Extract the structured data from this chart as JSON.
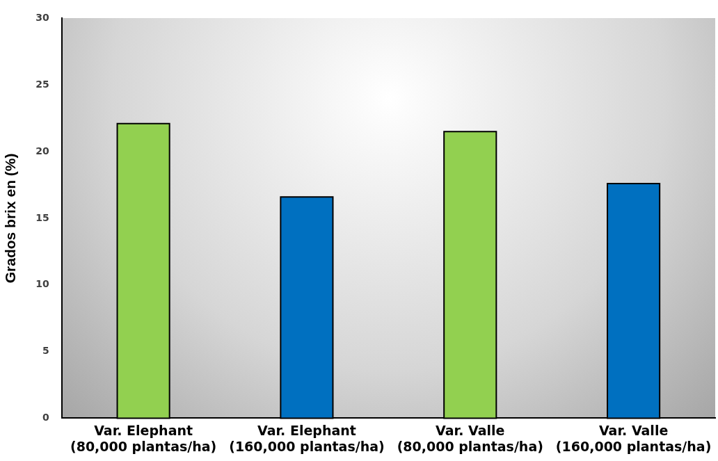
{
  "chart_data": {
    "type": "bar",
    "ylabel": "Grados brix en (%)",
    "categories": [
      "Var. Elephant\n(80,000 plantas/ha)",
      "Var. Elephant\n(160,000 plantas/ha)",
      "Var. Valle\n(80,000 plantas/ha)",
      "Var. Valle\n(160,000 plantas/ha)"
    ],
    "values": [
      22.1,
      16.6,
      21.5,
      17.6
    ],
    "colors": [
      "#92d050",
      "#0070c0",
      "#92d050",
      "#0070c0"
    ],
    "ylim": [
      0,
      30
    ],
    "yticks": [
      0,
      5,
      10,
      15,
      20,
      25,
      30
    ],
    "grid": false,
    "legend": false
  }
}
